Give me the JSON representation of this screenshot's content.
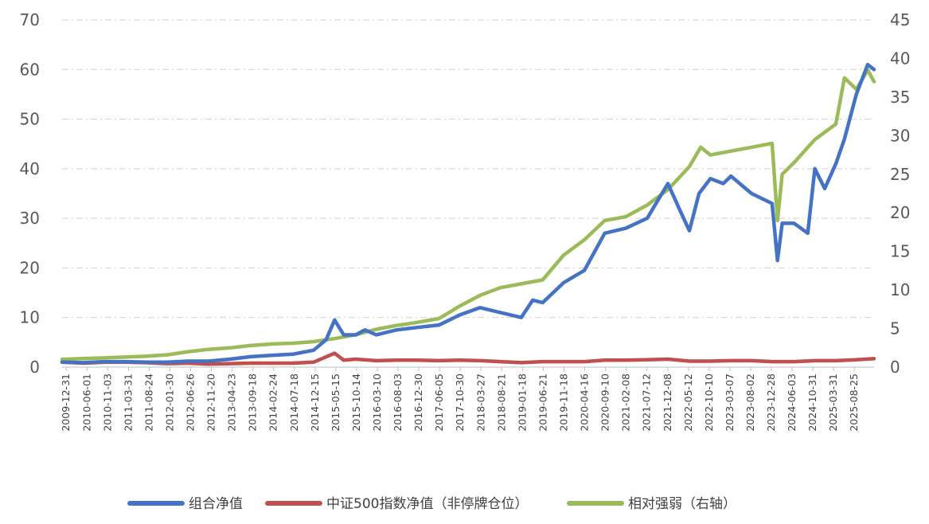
{
  "chart_data": {
    "type": "line",
    "title": "",
    "xlabel": "",
    "ylabel": "",
    "legend_position": "bottom",
    "grid": {
      "horizontal": true,
      "style": "dash-dot"
    },
    "x_range": [
      "2009-12-31",
      "2025-12-31"
    ],
    "y_left": {
      "range": [
        0,
        70
      ],
      "ticks": [
        "0",
        "10",
        "20",
        "30",
        "40",
        "50",
        "60",
        "70"
      ],
      "tick_values": [
        0,
        10,
        20,
        30,
        40,
        50,
        60,
        70
      ]
    },
    "y_right": {
      "range": [
        0,
        45
      ],
      "ticks": [
        "0",
        "5",
        "10",
        "15",
        "20",
        "25",
        "30",
        "35",
        "40",
        "45"
      ],
      "tick_values": [
        0,
        5,
        10,
        15,
        20,
        25,
        30,
        35,
        40,
        45
      ]
    },
    "x_tick_labels": [
      "2009-12-31",
      "2010-06-01",
      "2010-11-03",
      "2011-03-31",
      "2011-08-24",
      "2012-01-30",
      "2012-06-26",
      "2012-11-20",
      "2013-04-23",
      "2013-09-18",
      "2014-02-24",
      "2014-07-18",
      "2014-12-15",
      "2015-05-15",
      "2015-10-14",
      "2016-03-10",
      "2016-08-03",
      "2016-12-30",
      "2017-06-05",
      "2017-10-30",
      "2018-03-27",
      "2018-08-21",
      "2019-01-18",
      "2019-06-21",
      "2019-11-18",
      "2020-04-16",
      "2020-09-10",
      "2021-02-08",
      "2021-07-12",
      "2021-12-08",
      "2022-05-12",
      "2022-10-10",
      "2023-03-07",
      "2023-08-02",
      "2023-12-28",
      "2024-06-03",
      "2024-10-31",
      "2025-03-31",
      "2025-08-25"
    ],
    "series": [
      {
        "name": "组合净值",
        "axis": "left",
        "color": "#4472C4",
        "points": [
          [
            "2009-12-31",
            1.0
          ],
          [
            "2010-06-01",
            0.9
          ],
          [
            "2010-11-03",
            1.1
          ],
          [
            "2011-03-31",
            1.1
          ],
          [
            "2011-08-24",
            1.0
          ],
          [
            "2012-01-30",
            1.0
          ],
          [
            "2012-06-26",
            1.2
          ],
          [
            "2012-11-20",
            1.2
          ],
          [
            "2013-04-23",
            1.6
          ],
          [
            "2013-09-18",
            2.1
          ],
          [
            "2014-02-24",
            2.4
          ],
          [
            "2014-07-18",
            2.6
          ],
          [
            "2014-12-15",
            3.4
          ],
          [
            "2015-03-15",
            5.5
          ],
          [
            "2015-05-15",
            9.5
          ],
          [
            "2015-07-20",
            6.5
          ],
          [
            "2015-10-14",
            6.5
          ],
          [
            "2015-12-20",
            7.5
          ],
          [
            "2016-03-10",
            6.5
          ],
          [
            "2016-08-03",
            7.5
          ],
          [
            "2016-12-30",
            8.0
          ],
          [
            "2017-06-05",
            8.5
          ],
          [
            "2017-10-30",
            10.5
          ],
          [
            "2018-03-27",
            12.0
          ],
          [
            "2018-08-21",
            11.0
          ],
          [
            "2019-01-18",
            10.0
          ],
          [
            "2019-04-10",
            13.5
          ],
          [
            "2019-06-21",
            13.0
          ],
          [
            "2019-11-18",
            17.0
          ],
          [
            "2020-04-16",
            19.5
          ],
          [
            "2020-09-10",
            27.0
          ],
          [
            "2021-02-08",
            28.0
          ],
          [
            "2021-07-12",
            30.0
          ],
          [
            "2021-12-08",
            37.0
          ],
          [
            "2022-03-15",
            31.0
          ],
          [
            "2022-05-12",
            27.5
          ],
          [
            "2022-07-20",
            35.0
          ],
          [
            "2022-10-10",
            38.0
          ],
          [
            "2023-01-10",
            37.0
          ],
          [
            "2023-03-07",
            38.5
          ],
          [
            "2023-08-02",
            35.0
          ],
          [
            "2023-12-28",
            33.0
          ],
          [
            "2024-02-05",
            21.5
          ],
          [
            "2024-03-10",
            29.0
          ],
          [
            "2024-06-03",
            29.0
          ],
          [
            "2024-09-10",
            27.0
          ],
          [
            "2024-10-31",
            40.0
          ],
          [
            "2025-01-10",
            36.0
          ],
          [
            "2025-03-31",
            41.0
          ],
          [
            "2025-06-01",
            46.0
          ],
          [
            "2025-08-25",
            55.0
          ],
          [
            "2025-11-15",
            61.0
          ],
          [
            "2025-12-31",
            60.0
          ]
        ]
      },
      {
        "name": "中证500指数净值（非停牌仓位）",
        "axis": "left",
        "color": "#C0504D",
        "points": [
          [
            "2009-12-31",
            1.0
          ],
          [
            "2010-06-01",
            0.8
          ],
          [
            "2010-11-03",
            1.0
          ],
          [
            "2011-03-31",
            1.0
          ],
          [
            "2011-08-24",
            0.9
          ],
          [
            "2012-01-30",
            0.7
          ],
          [
            "2012-06-26",
            0.8
          ],
          [
            "2012-11-20",
            0.6
          ],
          [
            "2013-04-23",
            0.7
          ],
          [
            "2013-09-18",
            0.8
          ],
          [
            "2014-02-24",
            0.8
          ],
          [
            "2014-07-18",
            0.8
          ],
          [
            "2014-12-15",
            1.0
          ],
          [
            "2015-05-15",
            2.8
          ],
          [
            "2015-07-20",
            1.4
          ],
          [
            "2015-10-14",
            1.6
          ],
          [
            "2016-03-10",
            1.3
          ],
          [
            "2016-08-03",
            1.4
          ],
          [
            "2016-12-30",
            1.4
          ],
          [
            "2017-06-05",
            1.3
          ],
          [
            "2017-10-30",
            1.4
          ],
          [
            "2018-03-27",
            1.3
          ],
          [
            "2018-08-21",
            1.1
          ],
          [
            "2019-01-18",
            0.9
          ],
          [
            "2019-06-21",
            1.1
          ],
          [
            "2019-11-18",
            1.1
          ],
          [
            "2020-04-16",
            1.1
          ],
          [
            "2020-09-10",
            1.4
          ],
          [
            "2021-02-08",
            1.4
          ],
          [
            "2021-07-12",
            1.5
          ],
          [
            "2021-12-08",
            1.6
          ],
          [
            "2022-05-12",
            1.2
          ],
          [
            "2022-10-10",
            1.2
          ],
          [
            "2023-03-07",
            1.3
          ],
          [
            "2023-08-02",
            1.3
          ],
          [
            "2023-12-28",
            1.1
          ],
          [
            "2024-06-03",
            1.1
          ],
          [
            "2024-10-31",
            1.3
          ],
          [
            "2025-03-31",
            1.3
          ],
          [
            "2025-08-25",
            1.5
          ],
          [
            "2025-12-31",
            1.7
          ]
        ]
      },
      {
        "name": "相对强弱（右轴）",
        "axis": "right",
        "color": "#9BBB59",
        "points": [
          [
            "2009-12-31",
            1.0
          ],
          [
            "2010-06-01",
            1.1
          ],
          [
            "2010-11-03",
            1.2
          ],
          [
            "2011-03-31",
            1.3
          ],
          [
            "2011-08-24",
            1.4
          ],
          [
            "2012-01-30",
            1.6
          ],
          [
            "2012-06-26",
            2.0
          ],
          [
            "2012-11-20",
            2.3
          ],
          [
            "2013-04-23",
            2.5
          ],
          [
            "2013-09-18",
            2.8
          ],
          [
            "2014-02-24",
            3.0
          ],
          [
            "2014-07-18",
            3.1
          ],
          [
            "2014-12-15",
            3.3
          ],
          [
            "2015-05-15",
            3.7
          ],
          [
            "2015-10-14",
            4.2
          ],
          [
            "2016-03-10",
            4.9
          ],
          [
            "2016-08-03",
            5.4
          ],
          [
            "2016-12-30",
            5.8
          ],
          [
            "2017-06-05",
            6.3
          ],
          [
            "2017-10-30",
            7.9
          ],
          [
            "2018-03-27",
            9.3
          ],
          [
            "2018-08-21",
            10.3
          ],
          [
            "2019-01-18",
            10.8
          ],
          [
            "2019-06-21",
            11.3
          ],
          [
            "2019-11-18",
            14.5
          ],
          [
            "2020-04-16",
            16.5
          ],
          [
            "2020-09-10",
            19.0
          ],
          [
            "2021-02-08",
            19.5
          ],
          [
            "2021-07-12",
            21.0
          ],
          [
            "2021-12-08",
            23.0
          ],
          [
            "2022-05-12",
            26.0
          ],
          [
            "2022-08-01",
            28.5
          ],
          [
            "2022-10-10",
            27.5
          ],
          [
            "2023-03-07",
            28.0
          ],
          [
            "2023-08-02",
            28.5
          ],
          [
            "2023-12-28",
            29.0
          ],
          [
            "2024-02-05",
            19.0
          ],
          [
            "2024-03-10",
            25.0
          ],
          [
            "2024-06-03",
            26.5
          ],
          [
            "2024-10-31",
            29.5
          ],
          [
            "2025-03-31",
            31.5
          ],
          [
            "2025-06-01",
            37.5
          ],
          [
            "2025-08-25",
            36.0
          ],
          [
            "2025-11-15",
            38.5
          ],
          [
            "2025-12-31",
            37.0
          ]
        ]
      }
    ]
  }
}
